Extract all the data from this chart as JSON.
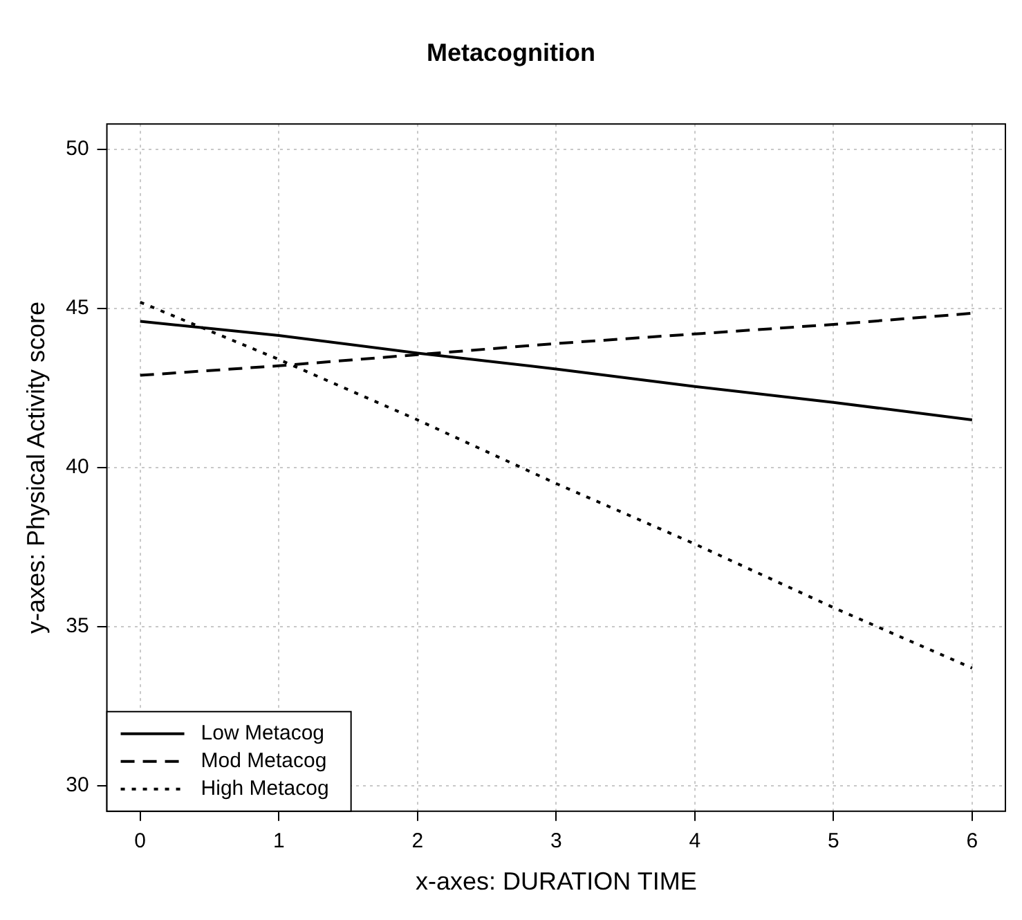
{
  "chart_data": {
    "type": "line",
    "title": "Metacognition",
    "xlabel": "x-axes: DURATION TIME",
    "ylabel": "y-axes: Physical Activity score",
    "x": [
      0,
      1,
      2,
      3,
      4,
      5,
      6
    ],
    "series": [
      {
        "name": "Low Metacog",
        "color": "#000000",
        "line_style": "solid",
        "values": [
          44.6,
          44.15,
          43.6,
          43.1,
          42.55,
          42.05,
          41.5
        ]
      },
      {
        "name": "Mod Metacog",
        "color": "#000000",
        "line_style": "dashed",
        "values": [
          42.9,
          43.2,
          43.55,
          43.9,
          44.2,
          44.5,
          44.85
        ]
      },
      {
        "name": "High Metacog",
        "color": "#000000",
        "line_style": "dotted",
        "values": [
          45.2,
          43.4,
          41.5,
          39.5,
          37.6,
          35.6,
          33.7
        ]
      }
    ],
    "xlim": [
      -0.24,
      6.24
    ],
    "xticks": [
      0,
      1,
      2,
      3,
      4,
      5,
      6
    ],
    "ylim": [
      29.2,
      50.8
    ],
    "yticks": [
      30,
      35,
      40,
      45,
      50
    ],
    "grid": true,
    "legend": "bottom left",
    "marker": "none"
  }
}
